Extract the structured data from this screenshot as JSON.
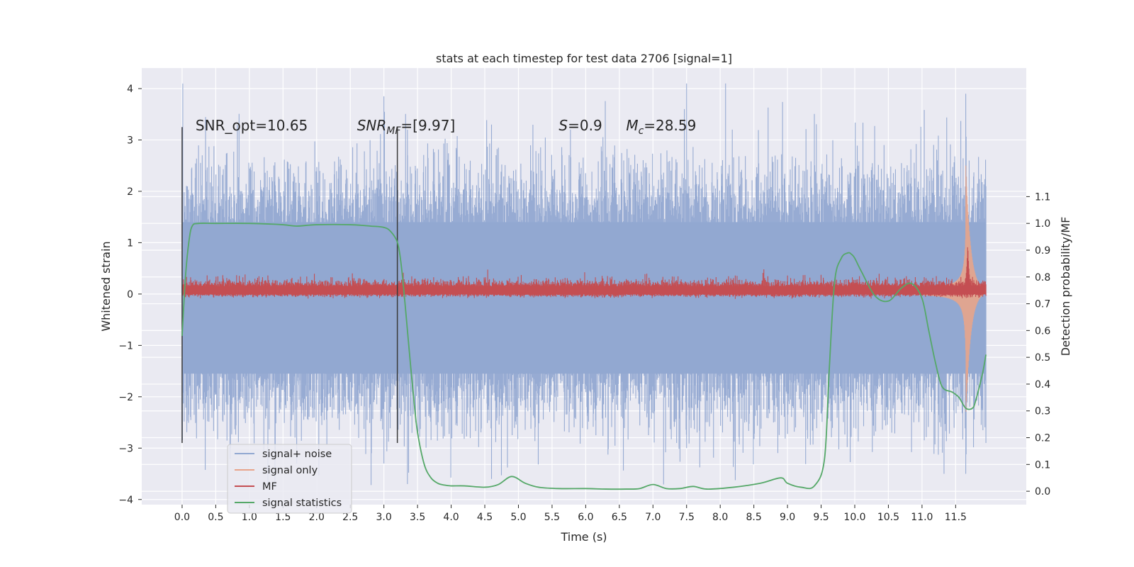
{
  "chart_data": {
    "type": "line",
    "title": "stats at each timestep for test data 2706 [signal=1]",
    "xlabel": "Time (s)",
    "ylabel": "Whitened strain",
    "y2label": "Detection probability/MF",
    "xlim": [
      -0.6,
      12.55
    ],
    "ylim": [
      -4.1,
      4.4
    ],
    "y2lim": [
      -0.05,
      1.58
    ],
    "xticks": [
      0.0,
      0.5,
      1.0,
      1.5,
      2.0,
      2.5,
      3.0,
      3.5,
      4.0,
      4.5,
      5.0,
      5.5,
      6.0,
      6.5,
      7.0,
      7.5,
      8.0,
      8.5,
      9.0,
      9.5,
      10.0,
      10.5,
      11.0,
      11.5
    ],
    "xtick_labels": [
      "0.0",
      "0.5",
      "1.0",
      "1.5",
      "2.0",
      "2.5",
      "3.0",
      "3.5",
      "4.0",
      "4.5",
      "5.0",
      "5.5",
      "6.0",
      "6.5",
      "7.0",
      "7.5",
      "8.0",
      "8.5",
      "9.0",
      "9.5",
      "10.0",
      "10.5",
      "11.0",
      "11.5"
    ],
    "yticks": [
      4,
      3,
      2,
      1,
      0,
      -1,
      -2,
      -3,
      -4
    ],
    "ytick_labels": [
      "4",
      "3",
      "2",
      "1",
      "0",
      "−1",
      "−2",
      "−3",
      "−4"
    ],
    "y2ticks": [
      1.1,
      1.0,
      0.9,
      0.8,
      0.7,
      0.6,
      0.5,
      0.4,
      0.3,
      0.2,
      0.1,
      0.0
    ],
    "y2tick_labels": [
      "1.1",
      "1.0",
      "0.9",
      "0.8",
      "0.7",
      "0.6",
      "0.5",
      "0.4",
      "0.3",
      "0.2",
      "0.1",
      "0.0"
    ],
    "grid": true,
    "legend_position": "lower-left",
    "annotations": [
      {
        "text": "SNR_opt=10.65",
        "x": 0.2
      },
      {
        "text": "SNR_MF=[9.97]",
        "x": 2.6
      },
      {
        "text": "S=0.9",
        "x": 5.6
      },
      {
        "text": "M_c=28.59",
        "x": 6.6
      }
    ],
    "vlines": [
      0.0,
      3.2
    ],
    "vline_range": [
      -2.9,
      3.25
    ],
    "series": [
      {
        "name": "signal+ noise",
        "axis": "left",
        "color": "#92a8d1",
        "description_envelope": [
          {
            "x": 0.0,
            "min": -2.9,
            "max": 3.25
          },
          {
            "x": 3.0,
            "min": -3.3,
            "max": 3.85
          },
          {
            "x": 3.35,
            "min": -3.7,
            "max": 3.2
          },
          {
            "x": 4.6,
            "min": -3.6,
            "max": 3.3
          },
          {
            "x": 7.5,
            "min": -3.0,
            "max": 4.1
          },
          {
            "x": 11.65,
            "min": -3.5,
            "max": 3.9
          },
          {
            "x": 11.95,
            "min": -2.9,
            "max": 2.1
          }
        ]
      },
      {
        "name": "signal only",
        "axis": "left",
        "color": "#e8a48a",
        "chirp": {
          "t_start": 9.0,
          "t_merge": 11.65,
          "t_end": 11.95,
          "peak_amp": 2.5
        }
      },
      {
        "name": "MF",
        "axis": "left",
        "color": "#c44e52",
        "band": {
          "center": 0.08,
          "half_width": 0.16,
          "peak": {
            "x": 11.68,
            "y": 1.0
          }
        }
      },
      {
        "name": "signal statistics",
        "axis": "right",
        "color": "#55a868",
        "x": [
          0.0,
          0.05,
          0.1,
          0.15,
          0.25,
          0.5,
          1.0,
          1.5,
          1.7,
          2.0,
          2.5,
          2.8,
          3.0,
          3.1,
          3.2,
          3.25,
          3.3,
          3.35,
          3.4,
          3.45,
          3.5,
          3.6,
          3.7,
          3.8,
          3.9,
          4.0,
          4.2,
          4.5,
          4.7,
          4.9,
          5.1,
          5.3,
          5.6,
          6.0,
          6.3,
          6.6,
          6.8,
          7.0,
          7.2,
          7.4,
          7.6,
          7.8,
          8.2,
          8.6,
          8.9,
          9.0,
          9.2,
          9.4,
          9.55,
          9.62,
          9.7,
          9.8,
          9.9,
          9.95,
          10.0,
          10.1,
          10.3,
          10.5,
          10.7,
          10.85,
          11.0,
          11.1,
          11.2,
          11.3,
          11.45,
          11.55,
          11.65,
          11.75,
          11.8,
          11.9,
          11.95
        ],
        "values": [
          0.58,
          0.8,
          0.93,
          0.99,
          1.0,
          1.0,
          1.0,
          0.995,
          0.99,
          0.995,
          0.995,
          0.99,
          0.985,
          0.97,
          0.93,
          0.86,
          0.74,
          0.6,
          0.46,
          0.33,
          0.22,
          0.1,
          0.05,
          0.03,
          0.023,
          0.02,
          0.02,
          0.015,
          0.025,
          0.055,
          0.03,
          0.015,
          0.01,
          0.01,
          0.008,
          0.008,
          0.01,
          0.025,
          0.01,
          0.01,
          0.018,
          0.008,
          0.015,
          0.03,
          0.05,
          0.03,
          0.015,
          0.02,
          0.12,
          0.45,
          0.78,
          0.87,
          0.89,
          0.885,
          0.87,
          0.82,
          0.73,
          0.71,
          0.76,
          0.775,
          0.72,
          0.6,
          0.48,
          0.39,
          0.37,
          0.35,
          0.31,
          0.31,
          0.34,
          0.44,
          0.51
        ]
      }
    ]
  }
}
